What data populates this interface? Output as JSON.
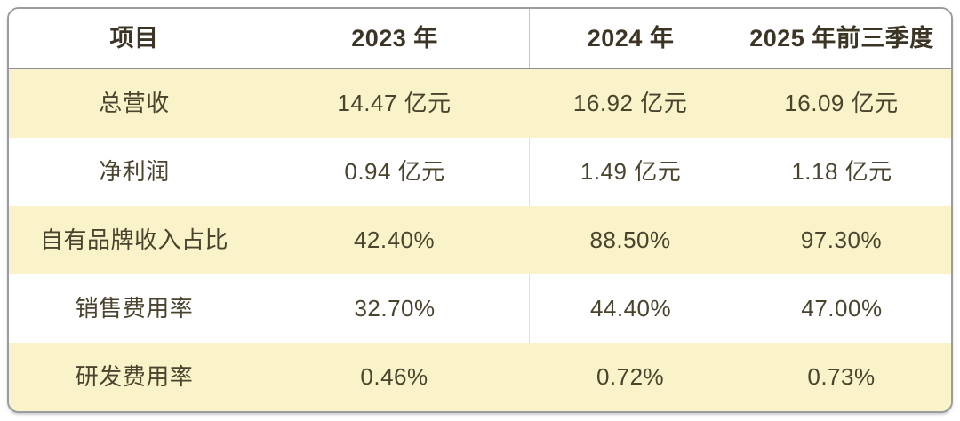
{
  "chart_data": {
    "type": "table",
    "columns": [
      "项目",
      "2023 年",
      "2024 年",
      "2025 年前三季度"
    ],
    "rows": [
      [
        "总营收",
        "14.47 亿元",
        "16.92 亿元",
        "16.09 亿元"
      ],
      [
        "净利润",
        "0.94 亿元",
        "1.49 亿元",
        "1.18 亿元"
      ],
      [
        "自有品牌收入占比",
        "42.40%",
        "88.50%",
        "97.30%"
      ],
      [
        "销售费用率",
        "32.70%",
        "44.40%",
        "47.00%"
      ],
      [
        "研发费用率",
        "0.46%",
        "0.72%",
        "0.73%"
      ]
    ]
  },
  "colors": {
    "row_highlight": "#faf2c8",
    "row_plain": "#ffffff",
    "text": "#4a432e",
    "header_text": "#3c3424",
    "outer_border": "#9b9ca0",
    "header_divider": "#8e8e93",
    "column_divider": "#dedfe1"
  }
}
